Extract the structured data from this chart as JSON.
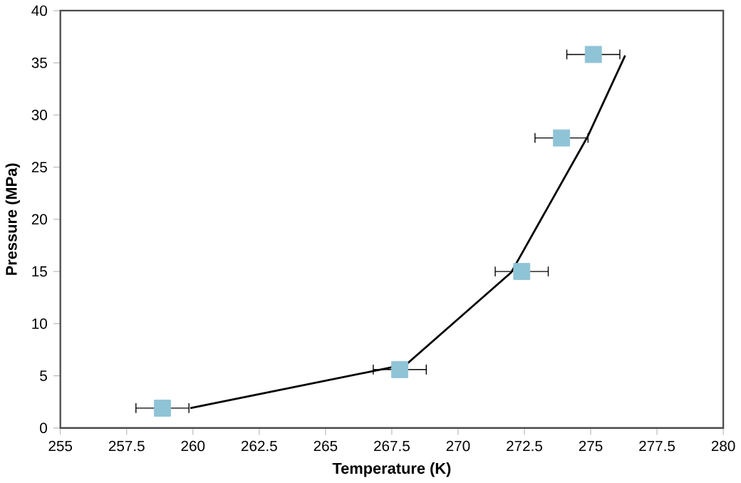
{
  "chart_data": {
    "type": "scatter",
    "xlabel": "Temperature (K)",
    "ylabel": "Pressure (MPa)",
    "xlim": [
      255,
      280
    ],
    "xticks": [
      255,
      257.5,
      260,
      262.5,
      265,
      267.5,
      270,
      272.5,
      275,
      277.5,
      280
    ],
    "ylim": [
      0,
      40
    ],
    "yticks": [
      0,
      5,
      10,
      15,
      20,
      25,
      30,
      35,
      40
    ],
    "grid": false,
    "series": [
      {
        "color": "#8fc4d6",
        "marker": "square",
        "x": [
          258.85,
          267.8,
          272.4,
          273.9,
          275.1
        ],
        "values": [
          1.9,
          5.6,
          15.0,
          27.8,
          35.8
        ],
        "xerrors": [
          1.0,
          1.0,
          1.0,
          1.0,
          1.0
        ]
      },
      {
        "type": "line",
        "color": "#000000",
        "marker": "none",
        "line_style": "solid",
        "x": [
          259.9,
          268.05,
          272.0,
          274.9,
          276.3
        ],
        "values": [
          1.9,
          6.1,
          14.9,
          28.0,
          35.7
        ]
      }
    ]
  }
}
